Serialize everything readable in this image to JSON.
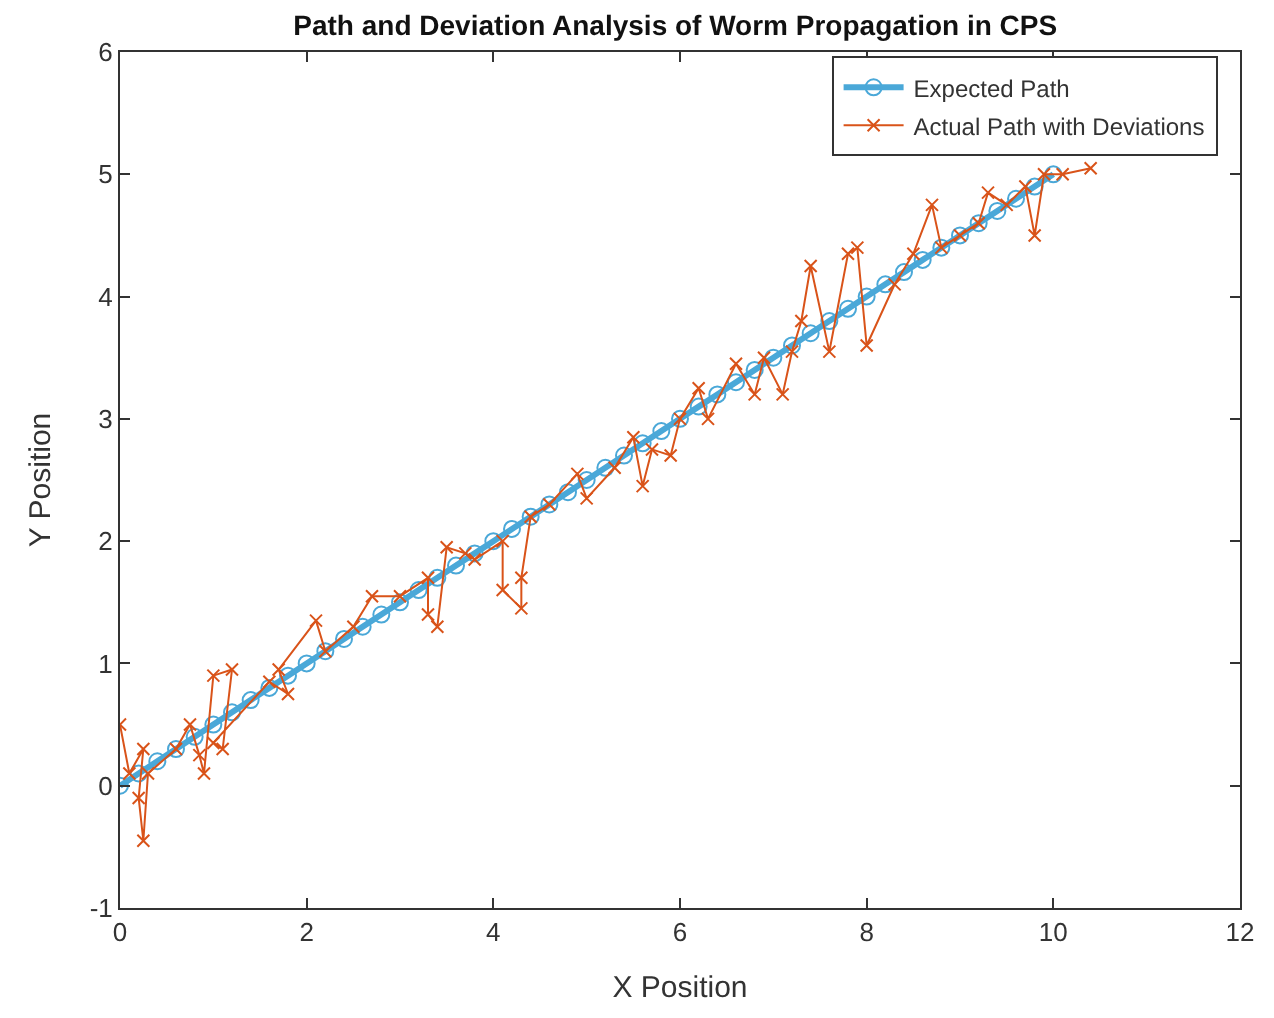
{
  "chart_data": {
    "type": "line",
    "title": "Path and Deviation Analysis of Worm Propagation in CPS",
    "xlabel": "X Position",
    "ylabel": "Y Position",
    "xlim": [
      0,
      12
    ],
    "xticks": [
      0,
      2,
      4,
      6,
      8,
      10,
      12
    ],
    "ylim": [
      -1,
      6
    ],
    "yticks": [
      -1,
      0,
      1,
      2,
      3,
      4,
      5,
      6
    ],
    "legend": "top right",
    "series": [
      {
        "name": "Expected Path",
        "color": "#4aa8d8",
        "marker": "circle",
        "line_style": "solid",
        "x": [
          0,
          0.2,
          0.4,
          0.6,
          0.8,
          1,
          1.2,
          1.4,
          1.6,
          1.8,
          2,
          2.2,
          2.4,
          2.6,
          2.8,
          3,
          3.2,
          3.4,
          3.6,
          3.8,
          4,
          4.2,
          4.4,
          4.6,
          4.8,
          5,
          5.2,
          5.4,
          5.6,
          5.8,
          6,
          6.2,
          6.4,
          6.6,
          6.8,
          7,
          7.2,
          7.4,
          7.6,
          7.8,
          8,
          8.2,
          8.4,
          8.6,
          8.8,
          9,
          9.2,
          9.4,
          9.6,
          9.8,
          10
        ],
        "values": [
          0,
          0.1,
          0.2,
          0.3,
          0.4,
          0.5,
          0.6,
          0.7,
          0.8,
          0.9,
          1,
          1.1,
          1.2,
          1.3,
          1.4,
          1.5,
          1.6,
          1.7,
          1.8,
          1.9,
          2,
          2.1,
          2.2,
          2.3,
          2.4,
          2.5,
          2.6,
          2.7,
          2.8,
          2.9,
          3,
          3.1,
          3.2,
          3.3,
          3.4,
          3.5,
          3.6,
          3.7,
          3.8,
          3.9,
          4,
          4.1,
          4.2,
          4.3,
          4.4,
          4.5,
          4.6,
          4.7,
          4.8,
          4.9,
          5
        ]
      },
      {
        "name": "Actual Path with Deviations",
        "color": "#d95319",
        "marker": "cross",
        "line_style": "solid",
        "x": [
          0,
          0.1,
          0.25,
          0.2,
          0.25,
          0.3,
          0.6,
          0.75,
          0.85,
          0.9,
          1.0,
          1.2,
          1.1,
          1.0,
          1.6,
          1.8,
          1.7,
          2.1,
          2.2,
          2.5,
          2.7,
          3.0,
          3.3,
          3.3,
          3.4,
          3.5,
          3.7,
          3.8,
          4.1,
          4.1,
          4.3,
          4.3,
          4.4,
          4.6,
          4.9,
          5.0,
          5.3,
          5.5,
          5.6,
          5.7,
          5.9,
          6.0,
          6.2,
          6.3,
          6.6,
          6.8,
          6.9,
          7.1,
          7.2,
          7.3,
          7.4,
          7.6,
          7.8,
          7.9,
          8.0,
          8.3,
          8.5,
          8.7,
          8.8,
          9.0,
          9.2,
          9.3,
          9.5,
          9.7,
          9.8,
          9.9,
          10.1,
          10.4
        ],
        "values": [
          0.5,
          0.1,
          0.3,
          -0.1,
          -0.45,
          0.1,
          0.3,
          0.5,
          0.25,
          0.1,
          0.9,
          0.95,
          0.3,
          0.35,
          0.85,
          0.75,
          0.95,
          1.35,
          1.1,
          1.3,
          1.55,
          1.55,
          1.7,
          1.4,
          1.3,
          1.95,
          1.9,
          1.85,
          2.0,
          1.6,
          1.45,
          1.7,
          2.2,
          2.3,
          2.55,
          2.35,
          2.6,
          2.85,
          2.45,
          2.75,
          2.7,
          3.0,
          3.25,
          3.0,
          3.45,
          3.2,
          3.5,
          3.2,
          3.55,
          3.8,
          4.25,
          3.55,
          4.35,
          4.4,
          3.6,
          4.1,
          4.35,
          4.75,
          4.4,
          4.5,
          4.6,
          4.85,
          4.75,
          4.9,
          4.5,
          5.0,
          5.0,
          5.05
        ]
      }
    ]
  }
}
